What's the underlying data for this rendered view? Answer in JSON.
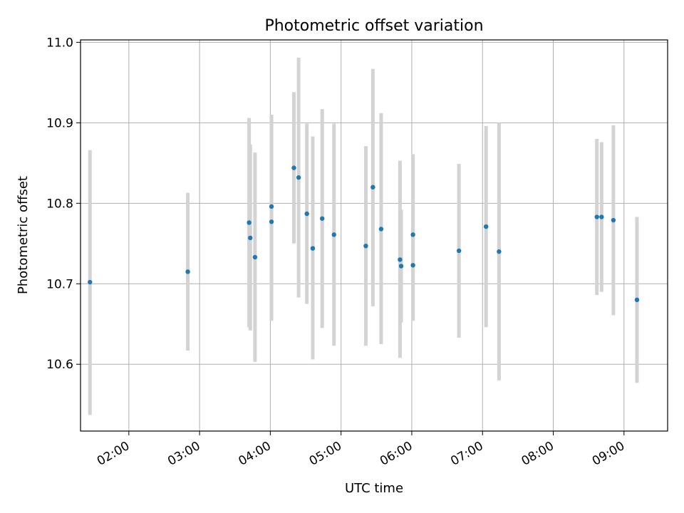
{
  "chart_data": {
    "type": "scatter",
    "title": "Photometric offset variation",
    "xlabel": "UTC time",
    "ylabel": "Photometric offset",
    "xlim": [
      "01:19",
      "09:37"
    ],
    "ylim": [
      10.517,
      11.003
    ],
    "x_ticks": [
      "02:00",
      "03:00",
      "04:00",
      "05:00",
      "06:00",
      "07:00",
      "08:00",
      "09:00"
    ],
    "y_ticks": [
      "10.6",
      "10.7",
      "10.8",
      "10.9",
      "11.0"
    ],
    "grid": true,
    "colors": {
      "point": "#1f77b4",
      "errorbar": "#d3d3d3",
      "grid": "#b0b0b0"
    },
    "points": [
      {
        "x": "01:27",
        "y": 10.702,
        "ylow": 10.537,
        "yhigh": 10.866
      },
      {
        "x": "02:50",
        "y": 10.715,
        "ylow": 10.617,
        "yhigh": 10.813
      },
      {
        "x": "03:42",
        "y": 10.776,
        "ylow": 10.646,
        "yhigh": 10.906
      },
      {
        "x": "03:43",
        "y": 10.757,
        "ylow": 10.642,
        "yhigh": 10.873
      },
      {
        "x": "03:47",
        "y": 10.733,
        "ylow": 10.603,
        "yhigh": 10.863
      },
      {
        "x": "04:01",
        "y": 10.796,
        "ylow": 10.686,
        "yhigh": 10.906
      },
      {
        "x": "04:01",
        "y": 10.777,
        "ylow": 10.654,
        "yhigh": 10.91
      },
      {
        "x": "04:20",
        "y": 10.844,
        "ylow": 10.75,
        "yhigh": 10.938
      },
      {
        "x": "04:24",
        "y": 10.832,
        "ylow": 10.683,
        "yhigh": 10.981
      },
      {
        "x": "04:31",
        "y": 10.787,
        "ylow": 10.675,
        "yhigh": 10.899
      },
      {
        "x": "04:36",
        "y": 10.744,
        "ylow": 10.606,
        "yhigh": 10.883
      },
      {
        "x": "04:44",
        "y": 10.781,
        "ylow": 10.645,
        "yhigh": 10.917
      },
      {
        "x": "04:54",
        "y": 10.761,
        "ylow": 10.623,
        "yhigh": 10.899
      },
      {
        "x": "05:21",
        "y": 10.747,
        "ylow": 10.623,
        "yhigh": 10.871
      },
      {
        "x": "05:27",
        "y": 10.82,
        "ylow": 10.672,
        "yhigh": 10.967
      },
      {
        "x": "05:34",
        "y": 10.768,
        "ylow": 10.625,
        "yhigh": 10.912
      },
      {
        "x": "05:50",
        "y": 10.73,
        "ylow": 10.608,
        "yhigh": 10.853
      },
      {
        "x": "05:51",
        "y": 10.722,
        "ylow": 10.652,
        "yhigh": 10.792
      },
      {
        "x": "06:01",
        "y": 10.723,
        "ylow": 10.654,
        "yhigh": 10.792
      },
      {
        "x": "06:01",
        "y": 10.761,
        "ylow": 10.662,
        "yhigh": 10.861
      },
      {
        "x": "06:40",
        "y": 10.741,
        "ylow": 10.633,
        "yhigh": 10.849
      },
      {
        "x": "07:03",
        "y": 10.771,
        "ylow": 10.646,
        "yhigh": 10.896
      },
      {
        "x": "07:14",
        "y": 10.74,
        "ylow": 10.58,
        "yhigh": 10.9
      },
      {
        "x": "08:37",
        "y": 10.783,
        "ylow": 10.686,
        "yhigh": 10.88
      },
      {
        "x": "08:41",
        "y": 10.783,
        "ylow": 10.69,
        "yhigh": 10.876
      },
      {
        "x": "08:51",
        "y": 10.779,
        "ylow": 10.661,
        "yhigh": 10.897
      },
      {
        "x": "09:11",
        "y": 10.68,
        "ylow": 10.577,
        "yhigh": 10.783
      }
    ]
  }
}
